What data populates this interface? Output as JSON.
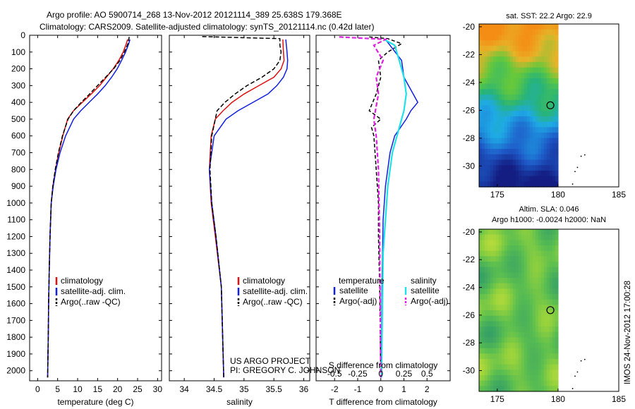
{
  "header": {
    "line1": "Argo profile: AO 5900714_268 13-Nov-2012 20121114_389 25.638S 179.368E",
    "line2": "Climatology: CARS2009. Satellite-adjusted climatology: synTS_20121114.nc (0.42d later)"
  },
  "footer": {
    "project": "US ARGO PROJECT",
    "pi": "PI: GREGORY C. JOHNSON",
    "stamp": "IMOS 24-Nov-2012 17:00:28"
  },
  "colors": {
    "climatology": "#e01010",
    "satellite": "#1020e0",
    "argo": "#000000",
    "satellite_salinity": "#20e0e8",
    "argo_salinity": "#e020e0"
  },
  "chart_data": [
    {
      "type": "line",
      "panel": "temperature",
      "xlabel": "temperature (deg C)",
      "ylabel": "",
      "xlim": [
        -2,
        31
      ],
      "ylim": [
        2060,
        0
      ],
      "xticks": [
        "0",
        "5",
        "10",
        "15",
        "20",
        "25",
        "30"
      ],
      "yticks": [
        "0",
        "100",
        "200",
        "300",
        "400",
        "500",
        "600",
        "700",
        "800",
        "900",
        "1000",
        "1100",
        "1200",
        "1300",
        "1400",
        "1500",
        "1600",
        "1700",
        "1800",
        "1900",
        "2000"
      ],
      "legend": [
        "climatology",
        "satellite-adj. clim.",
        "Argo(..raw -QC)"
      ],
      "series": [
        {
          "name": "climatology",
          "x": [
            22.5,
            22.2,
            21.4,
            20.3,
            18.9,
            17.2,
            15.5,
            13.4,
            11.2,
            9.0,
            7.5,
            6.3,
            5.3,
            4.5,
            3.8,
            3.4,
            3.1,
            2.9,
            2.75,
            2.65,
            2.5
          ],
          "y": [
            25,
            50,
            100,
            150,
            200,
            250,
            300,
            350,
            400,
            450,
            500,
            600,
            700,
            800,
            900,
            1000,
            1200,
            1400,
            1600,
            1800,
            2040
          ]
        },
        {
          "name": "satellite-adj. clim.",
          "x": [
            23.1,
            22.8,
            22.0,
            21.0,
            19.9,
            18.5,
            16.9,
            15.0,
            12.9,
            10.8,
            9.0,
            7.0,
            5.6,
            4.6,
            3.9,
            3.4,
            3.1,
            2.9,
            2.75,
            2.65,
            2.5
          ],
          "y": [
            25,
            50,
            100,
            150,
            200,
            250,
            300,
            350,
            400,
            450,
            500,
            600,
            700,
            800,
            900,
            1000,
            1200,
            1400,
            1600,
            1800,
            2040
          ]
        },
        {
          "name": "Argo(..raw -QC)",
          "x": [
            22.9,
            22.6,
            21.7,
            20.6,
            19.0,
            17.0,
            15.0,
            13.0,
            10.9,
            9.0,
            7.6,
            6.2,
            5.2,
            4.4,
            3.8,
            3.4,
            3.1,
            2.9,
            2.75,
            2.65,
            2.5
          ],
          "y": [
            10,
            50,
            100,
            150,
            200,
            250,
            300,
            350,
            400,
            450,
            500,
            600,
            700,
            800,
            900,
            1000,
            1200,
            1400,
            1600,
            1800,
            2040
          ]
        }
      ]
    },
    {
      "type": "line",
      "panel": "salinity",
      "xlabel": "salinity",
      "ylabel": "",
      "xlim": [
        33.75,
        36.1
      ],
      "ylim": [
        2060,
        0
      ],
      "xticks": [
        "34",
        "34.5",
        "35",
        "35.5",
        "36"
      ],
      "legend": [
        "climatology",
        "satellite-adj. clim.",
        "Argo(..raw -QC)"
      ],
      "series": [
        {
          "name": "climatology",
          "x": [
            35.65,
            35.66,
            35.67,
            35.62,
            35.5,
            35.25,
            35.0,
            34.8,
            34.65,
            34.52,
            34.45,
            34.42,
            34.45,
            34.52,
            34.62,
            34.66
          ],
          "y": [
            25,
            100,
            150,
            200,
            250,
            300,
            350,
            400,
            450,
            500,
            600,
            800,
            1000,
            1200,
            1500,
            2040
          ]
        },
        {
          "name": "satellite-adj. clim.",
          "x": [
            35.7,
            35.72,
            35.73,
            35.72,
            35.66,
            35.55,
            35.4,
            35.15,
            34.9,
            34.7,
            34.5,
            34.42,
            34.46,
            34.53,
            34.62,
            34.66
          ],
          "y": [
            25,
            100,
            150,
            200,
            250,
            300,
            350,
            400,
            450,
            500,
            600,
            800,
            1000,
            1200,
            1500,
            2040
          ]
        },
        {
          "name": "Argo(..raw -QC)",
          "x": [
            34.3,
            35.6,
            35.6,
            35.62,
            35.6,
            35.5,
            35.3,
            35.05,
            34.85,
            34.68,
            34.55,
            34.46,
            34.43,
            34.46,
            34.53,
            34.62,
            34.66
          ],
          "y": [
            8,
            20,
            60,
            100,
            150,
            200,
            250,
            300,
            350,
            400,
            450,
            600,
            800,
            1000,
            1200,
            1500,
            2040
          ]
        }
      ]
    },
    {
      "type": "line",
      "panel": "differences",
      "xlabel": "T difference from climatology",
      "xlabel_top": "S difference from climatology",
      "xlim": [
        -2.8,
        3.0
      ],
      "ylim": [
        2060,
        0
      ],
      "xticks": [
        "-2",
        "-1",
        "0",
        "1",
        "2"
      ],
      "xticks_s": [
        "-0.5",
        "-0.25",
        "0",
        "0.25",
        "0.5"
      ],
      "legend_titles": [
        "temperature",
        "salinity"
      ],
      "legend": [
        "satellite",
        "Argo(-adj)",
        "satellite",
        "Argo(-adj)"
      ],
      "series": [
        {
          "name": "satellite",
          "x": [
            0.2,
            0.4,
            0.9,
            1.0,
            1.2,
            1.4,
            1.6,
            1.3,
            1.1,
            0.6,
            0.4,
            0.2,
            0.1,
            0.05,
            0.02
          ],
          "y": [
            25,
            60,
            150,
            250,
            300,
            350,
            400,
            450,
            500,
            600,
            700,
            900,
            1100,
            1500,
            2040
          ]
        },
        {
          "name": "Argo(-adj)",
          "x": [
            -0.5,
            0.3,
            0.9,
            0.3,
            -0.1,
            0.0,
            -0.2,
            -0.5,
            0.0,
            -0.4,
            -0.3,
            -0.2,
            -0.1,
            -0.1,
            -0.05,
            0.0
          ],
          "y": [
            10,
            20,
            50,
            100,
            150,
            250,
            350,
            450,
            500,
            550,
            600,
            800,
            1000,
            1200,
            1500,
            2040
          ]
        },
        {
          "name": "satellite",
          "x": [
            0.15,
            0.6,
            0.8,
            1.0,
            1.1,
            1.0,
            0.8,
            0.5,
            0.3,
            0.1,
            0.03
          ],
          "y": [
            25,
            60,
            150,
            250,
            350,
            450,
            550,
            700,
            900,
            1300,
            2040
          ]
        },
        {
          "name": "Argo(-adj)",
          "x": [
            -1.8,
            0.2,
            -0.3,
            0.1,
            -0.2,
            -0.1,
            -0.3,
            -0.2,
            -0.1,
            -0.05,
            0.0
          ],
          "y": [
            10,
            25,
            60,
            150,
            250,
            350,
            500,
            600,
            800,
            1200,
            2040
          ]
        }
      ]
    },
    {
      "type": "heatmap",
      "panel": "map-sst",
      "title": "sat. SST: 22.2  Argo: 22.9",
      "xlim": [
        173.5,
        185
      ],
      "ylim": [
        -31.5,
        -19.8
      ],
      "xticks": [
        "175",
        "180",
        "185"
      ],
      "yticks": [
        "-20",
        "-22",
        "-24",
        "-26",
        "-28",
        "-30"
      ],
      "marker": {
        "lon": 179.37,
        "lat": -25.64
      }
    },
    {
      "type": "heatmap",
      "panel": "map-sla",
      "title": "Altim. SLA: 0.046",
      "subtitle": "Argo h1000: -0.0024  h2000: NaN",
      "xlim": [
        173.5,
        185
      ],
      "ylim": [
        -31.5,
        -19.8
      ],
      "xticks": [
        "175",
        "180",
        "185"
      ],
      "yticks": [
        "-20",
        "-22",
        "-24",
        "-26",
        "-28",
        "-30"
      ],
      "marker": {
        "lon": 179.37,
        "lat": -25.64
      }
    }
  ]
}
